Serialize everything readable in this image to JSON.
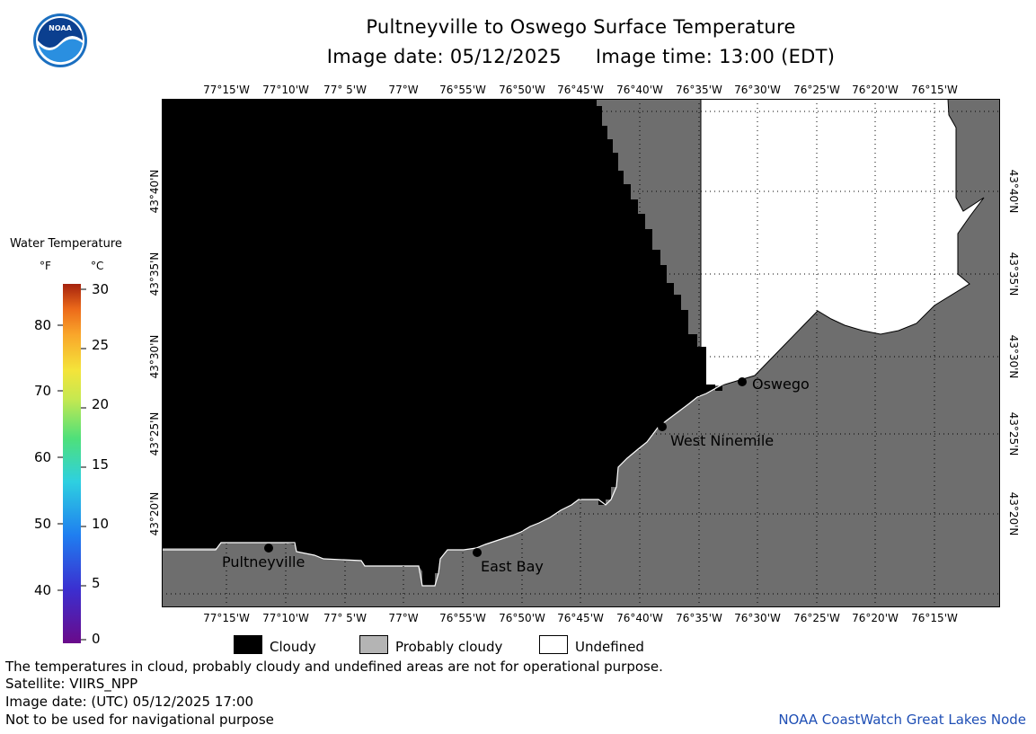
{
  "title": "Pultneyville to Oswego Surface Temperature",
  "image_date_label": "Image date: 05/12/2025",
  "image_time_label": "Image time: 13:00 (EDT)",
  "logo_text": "NOAA",
  "longitude_labels": [
    "77°15'W",
    "77°10'W",
    "77° 5'W",
    "77°W",
    "76°55'W",
    "76°50'W",
    "76°45'W",
    "76°40'W",
    "76°35'W",
    "76°30'W",
    "76°25'W",
    "76°20'W",
    "76°15'W"
  ],
  "latitude_labels": [
    "43°40'N",
    "43°35'N",
    "43°30'N",
    "43°25'N",
    "43°20'N"
  ],
  "places": [
    "Oswego",
    "West Ninemile",
    "Pultneyville",
    "East Bay"
  ],
  "legend": {
    "title": "Water Temperature",
    "unit_f": "°F",
    "unit_c": "°C",
    "fahrenheit_ticks": [
      "80",
      "70",
      "60",
      "50",
      "40"
    ],
    "celsius_ticks": [
      "30",
      "25",
      "20",
      "15",
      "10",
      "5",
      "0"
    ]
  },
  "key": {
    "cloudy": "Cloudy",
    "probably_cloudy": "Probably cloudy",
    "undefined": "Undefined"
  },
  "notes": {
    "disclaimer": "The temperatures in cloud, probably cloudy and undefined areas are not for operational purpose.",
    "satellite": "Satellite: VIIRS_NPP",
    "utc_date": "Image date: (UTC) 05/12/2025  17:00",
    "navigation": "Not to be used for navigational purpose",
    "credit": "NOAA CoastWatch Great Lakes Node"
  },
  "colors": {
    "cloudy": "#000000",
    "probably_cloudy": "#b4b4b4",
    "land": "#6e6e6e",
    "undefined": "#ffffff",
    "credit_text": "#1f4fb5"
  }
}
